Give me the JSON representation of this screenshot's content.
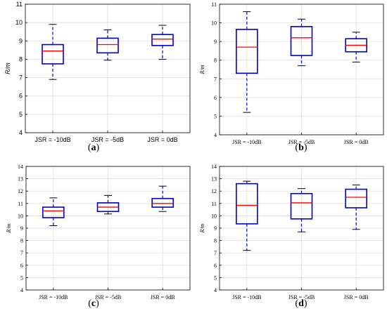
{
  "chart_data": [
    {
      "type": "box",
      "panel_label": "a",
      "ylabel": "R/m",
      "ylim": [
        4,
        11
      ],
      "yticks": [
        4,
        5,
        6,
        7,
        8,
        9,
        10,
        11
      ],
      "categories": [
        "JSR = -10dB",
        "JSR = -5dB",
        "JSR = 0dB"
      ],
      "boxes": [
        {
          "min": 6.9,
          "q1": 7.75,
          "median": 8.45,
          "q3": 8.8,
          "max": 9.9
        },
        {
          "min": 7.95,
          "q1": 8.35,
          "median": 8.8,
          "q3": 9.15,
          "max": 9.6
        },
        {
          "min": 8.0,
          "q1": 8.75,
          "median": 9.1,
          "q3": 9.35,
          "max": 9.85
        }
      ],
      "grid": true
    },
    {
      "type": "box",
      "panel_label": "b",
      "ylabel": "R/m",
      "ylim": [
        4,
        11
      ],
      "yticks": [
        4,
        5,
        6,
        7,
        8,
        9,
        10,
        11
      ],
      "categories": [
        "JSR = -10dB",
        "JSR = -5dB",
        "JSR = 0dB"
      ],
      "boxes": [
        {
          "min": 5.2,
          "q1": 7.3,
          "median": 8.7,
          "q3": 9.65,
          "max": 10.6
        },
        {
          "min": 7.7,
          "q1": 8.25,
          "median": 9.2,
          "q3": 9.8,
          "max": 10.2
        },
        {
          "min": 7.9,
          "q1": 8.45,
          "median": 8.8,
          "q3": 9.15,
          "max": 9.5
        }
      ],
      "grid": true
    },
    {
      "type": "box",
      "panel_label": "c",
      "ylabel": "R/m",
      "ylim": [
        4,
        14
      ],
      "yticks": [
        4,
        5,
        6,
        7,
        8,
        9,
        10,
        11,
        12,
        13,
        14
      ],
      "categories": [
        "JSR = -10dB",
        "JSR = -5dB",
        "JSR = 0dB"
      ],
      "boxes": [
        {
          "min": 9.2,
          "q1": 9.85,
          "median": 10.4,
          "q3": 10.7,
          "max": 11.45
        },
        {
          "min": 10.15,
          "q1": 10.35,
          "median": 10.7,
          "q3": 11.05,
          "max": 11.65
        },
        {
          "min": 10.35,
          "q1": 10.7,
          "median": 11.0,
          "q3": 11.4,
          "max": 12.4
        }
      ],
      "grid": true
    },
    {
      "type": "box",
      "panel_label": "d",
      "ylabel": "R/m",
      "ylim": [
        4,
        14
      ],
      "yticks": [
        4,
        5,
        6,
        7,
        8,
        9,
        10,
        11,
        12,
        13,
        14
      ],
      "categories": [
        "JSR = -10dB",
        "JSR = -5dB",
        "JSR = 0dB"
      ],
      "boxes": [
        {
          "min": 7.2,
          "q1": 9.35,
          "median": 10.85,
          "q3": 12.6,
          "max": 12.8
        },
        {
          "min": 8.7,
          "q1": 9.75,
          "median": 11.05,
          "q3": 11.8,
          "max": 12.2
        },
        {
          "min": 8.9,
          "q1": 10.65,
          "median": 11.5,
          "q3": 12.15,
          "max": 12.5
        }
      ],
      "grid": true
    }
  ],
  "colors": {
    "box": "#0000cc",
    "median": "#ff0000",
    "grid": "#d9d9d9",
    "axis": "#000000"
  }
}
